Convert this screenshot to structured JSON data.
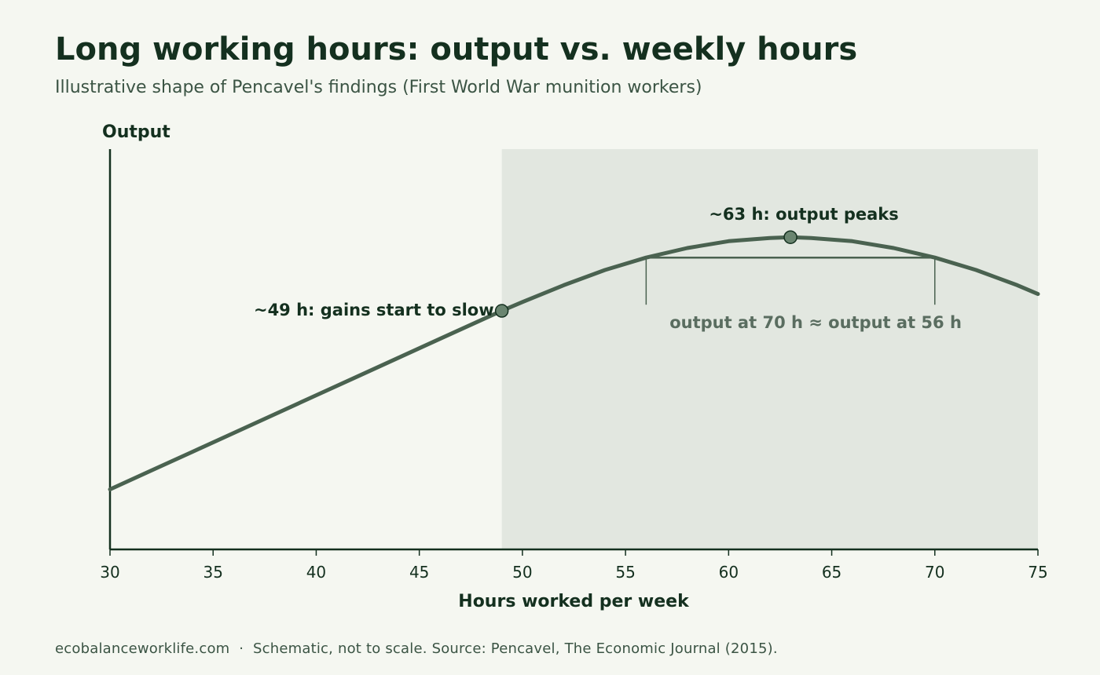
{
  "header": {
    "title": "Long working hours: output vs. weekly hours",
    "subtitle": "Illustrative shape of Pencavel's findings (First World War munition workers)"
  },
  "footer": {
    "text": "ecobalanceworklife.com  ·  Schematic, not to scale. Source: Pencavel, The Economic Journal (2015)."
  },
  "colors": {
    "background": "#f5f7f1",
    "shaded_region": "#e2e7e0",
    "curve": "#4a6250",
    "marker": "#6a8570",
    "text": "#14301f",
    "muted_annotation": "#5a6d60"
  },
  "chart_data": {
    "type": "line",
    "xlabel": "Hours worked per week",
    "ylabel": "Output",
    "xlim": [
      30,
      75
    ],
    "x_ticks": [
      30,
      35,
      40,
      45,
      50,
      55,
      60,
      65,
      70,
      75
    ],
    "y_ticks": [],
    "ylim": [
      0,
      100
    ],
    "grid": false,
    "shaded_region": {
      "x_start": 49,
      "x_end": 75
    },
    "series": [
      {
        "x": [
          30,
          32,
          34,
          36,
          38,
          40,
          42,
          44,
          46,
          48,
          49,
          50,
          52,
          54,
          56,
          58,
          60,
          62,
          63,
          64,
          66,
          68,
          70,
          72,
          74,
          75
        ],
        "y": [
          15.0,
          19.7,
          24.4,
          29.1,
          33.8,
          38.5,
          43.2,
          47.9,
          52.6,
          57.3,
          59.6,
          61.8,
          66.0,
          69.8,
          72.9,
          75.3,
          77.0,
          77.8,
          78.0,
          77.8,
          77.0,
          75.3,
          72.9,
          69.8,
          66.0,
          63.8
        ]
      }
    ],
    "points": [
      {
        "x": 49,
        "y": 59.6,
        "label": "~49 h: gains start to slow"
      },
      {
        "x": 63,
        "y": 78.0,
        "label": "~63 h: output peaks"
      }
    ],
    "bracket": {
      "x_start": 56,
      "x_end": 70,
      "y": 72.9,
      "label": "output at 70 h ≈ output at 56 h"
    }
  }
}
